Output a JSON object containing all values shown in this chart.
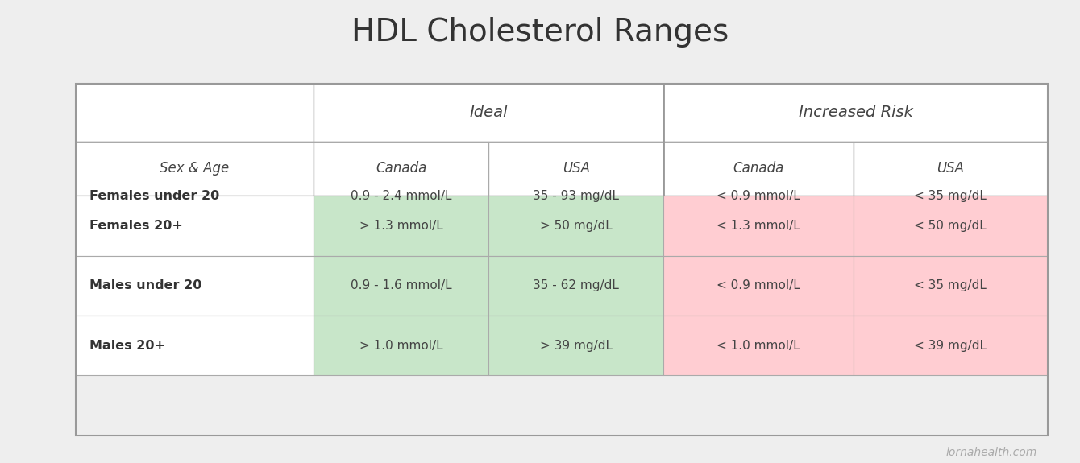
{
  "title": "HDL Cholesterol Ranges",
  "background_color": "#eeeeee",
  "title_fontsize": 28,
  "watermark": "lornahealth.com",
  "col_header_row1": [
    "",
    "Ideal",
    "Increased Risk"
  ],
  "col_header_row2": [
    "Sex & Age",
    "Canada",
    "USA",
    "Canada",
    "USA"
  ],
  "rows": [
    [
      "Females under 20",
      "0.9 - 2.4 mmol/L",
      "35 - 93 mg/dL",
      "< 0.9 mmol/L",
      "< 35 mg/dL"
    ],
    [
      "Females 20+",
      "> 1.3 mmol/L",
      "> 50 mg/dL",
      "< 1.3 mmol/L",
      "< 50 mg/dL"
    ],
    [
      "Males under 20",
      "0.9 - 1.6 mmol/L",
      "35 - 62 mg/dL",
      "< 0.9 mmol/L",
      "< 35 mg/dL"
    ],
    [
      "Males 20+",
      "> 1.0 mmol/L",
      "> 39 mg/dL",
      "< 1.0 mmol/L",
      "< 39 mg/dL"
    ]
  ],
  "green_color": "#c8e6c9",
  "pink_color": "#ffcdd2",
  "text_color": "#444444",
  "label_color": "#333333",
  "bold_color": "#333333"
}
